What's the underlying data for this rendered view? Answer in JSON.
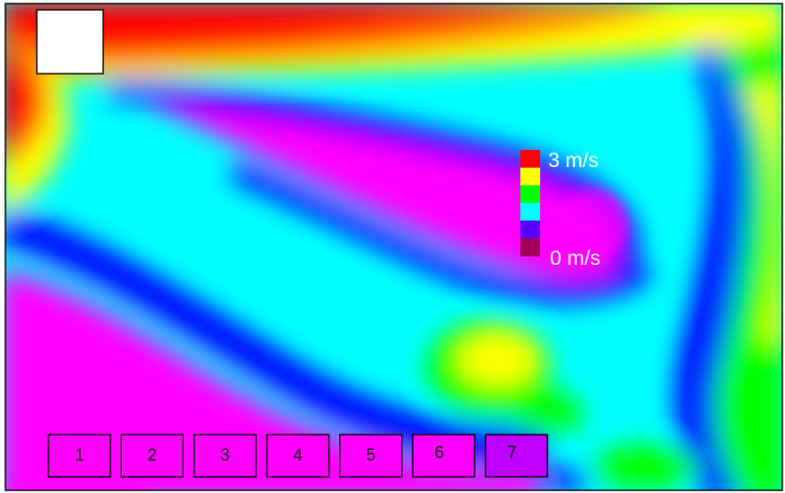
{
  "legend": {
    "max_label": "3 m/s",
    "min_label": "0 m/s",
    "swatches": [
      "#ff0000",
      "#ffff00",
      "#00ff00",
      "#00ffff",
      "#5a00ff",
      "#a0005a"
    ]
  },
  "colors": {
    "red": "#ff0000",
    "orange": "#ff7a00",
    "yellow": "#ffff00",
    "green": "#00ff00",
    "cyan": "#00ffff",
    "blue": "#0000ff",
    "magenta": "#ff00ff",
    "violet": "#c800ff"
  },
  "boxes": [
    {
      "label": "1"
    },
    {
      "label": "2"
    },
    {
      "label": "3"
    },
    {
      "label": "4"
    },
    {
      "label": "5"
    },
    {
      "label": "6"
    },
    {
      "label": "7"
    }
  ]
}
